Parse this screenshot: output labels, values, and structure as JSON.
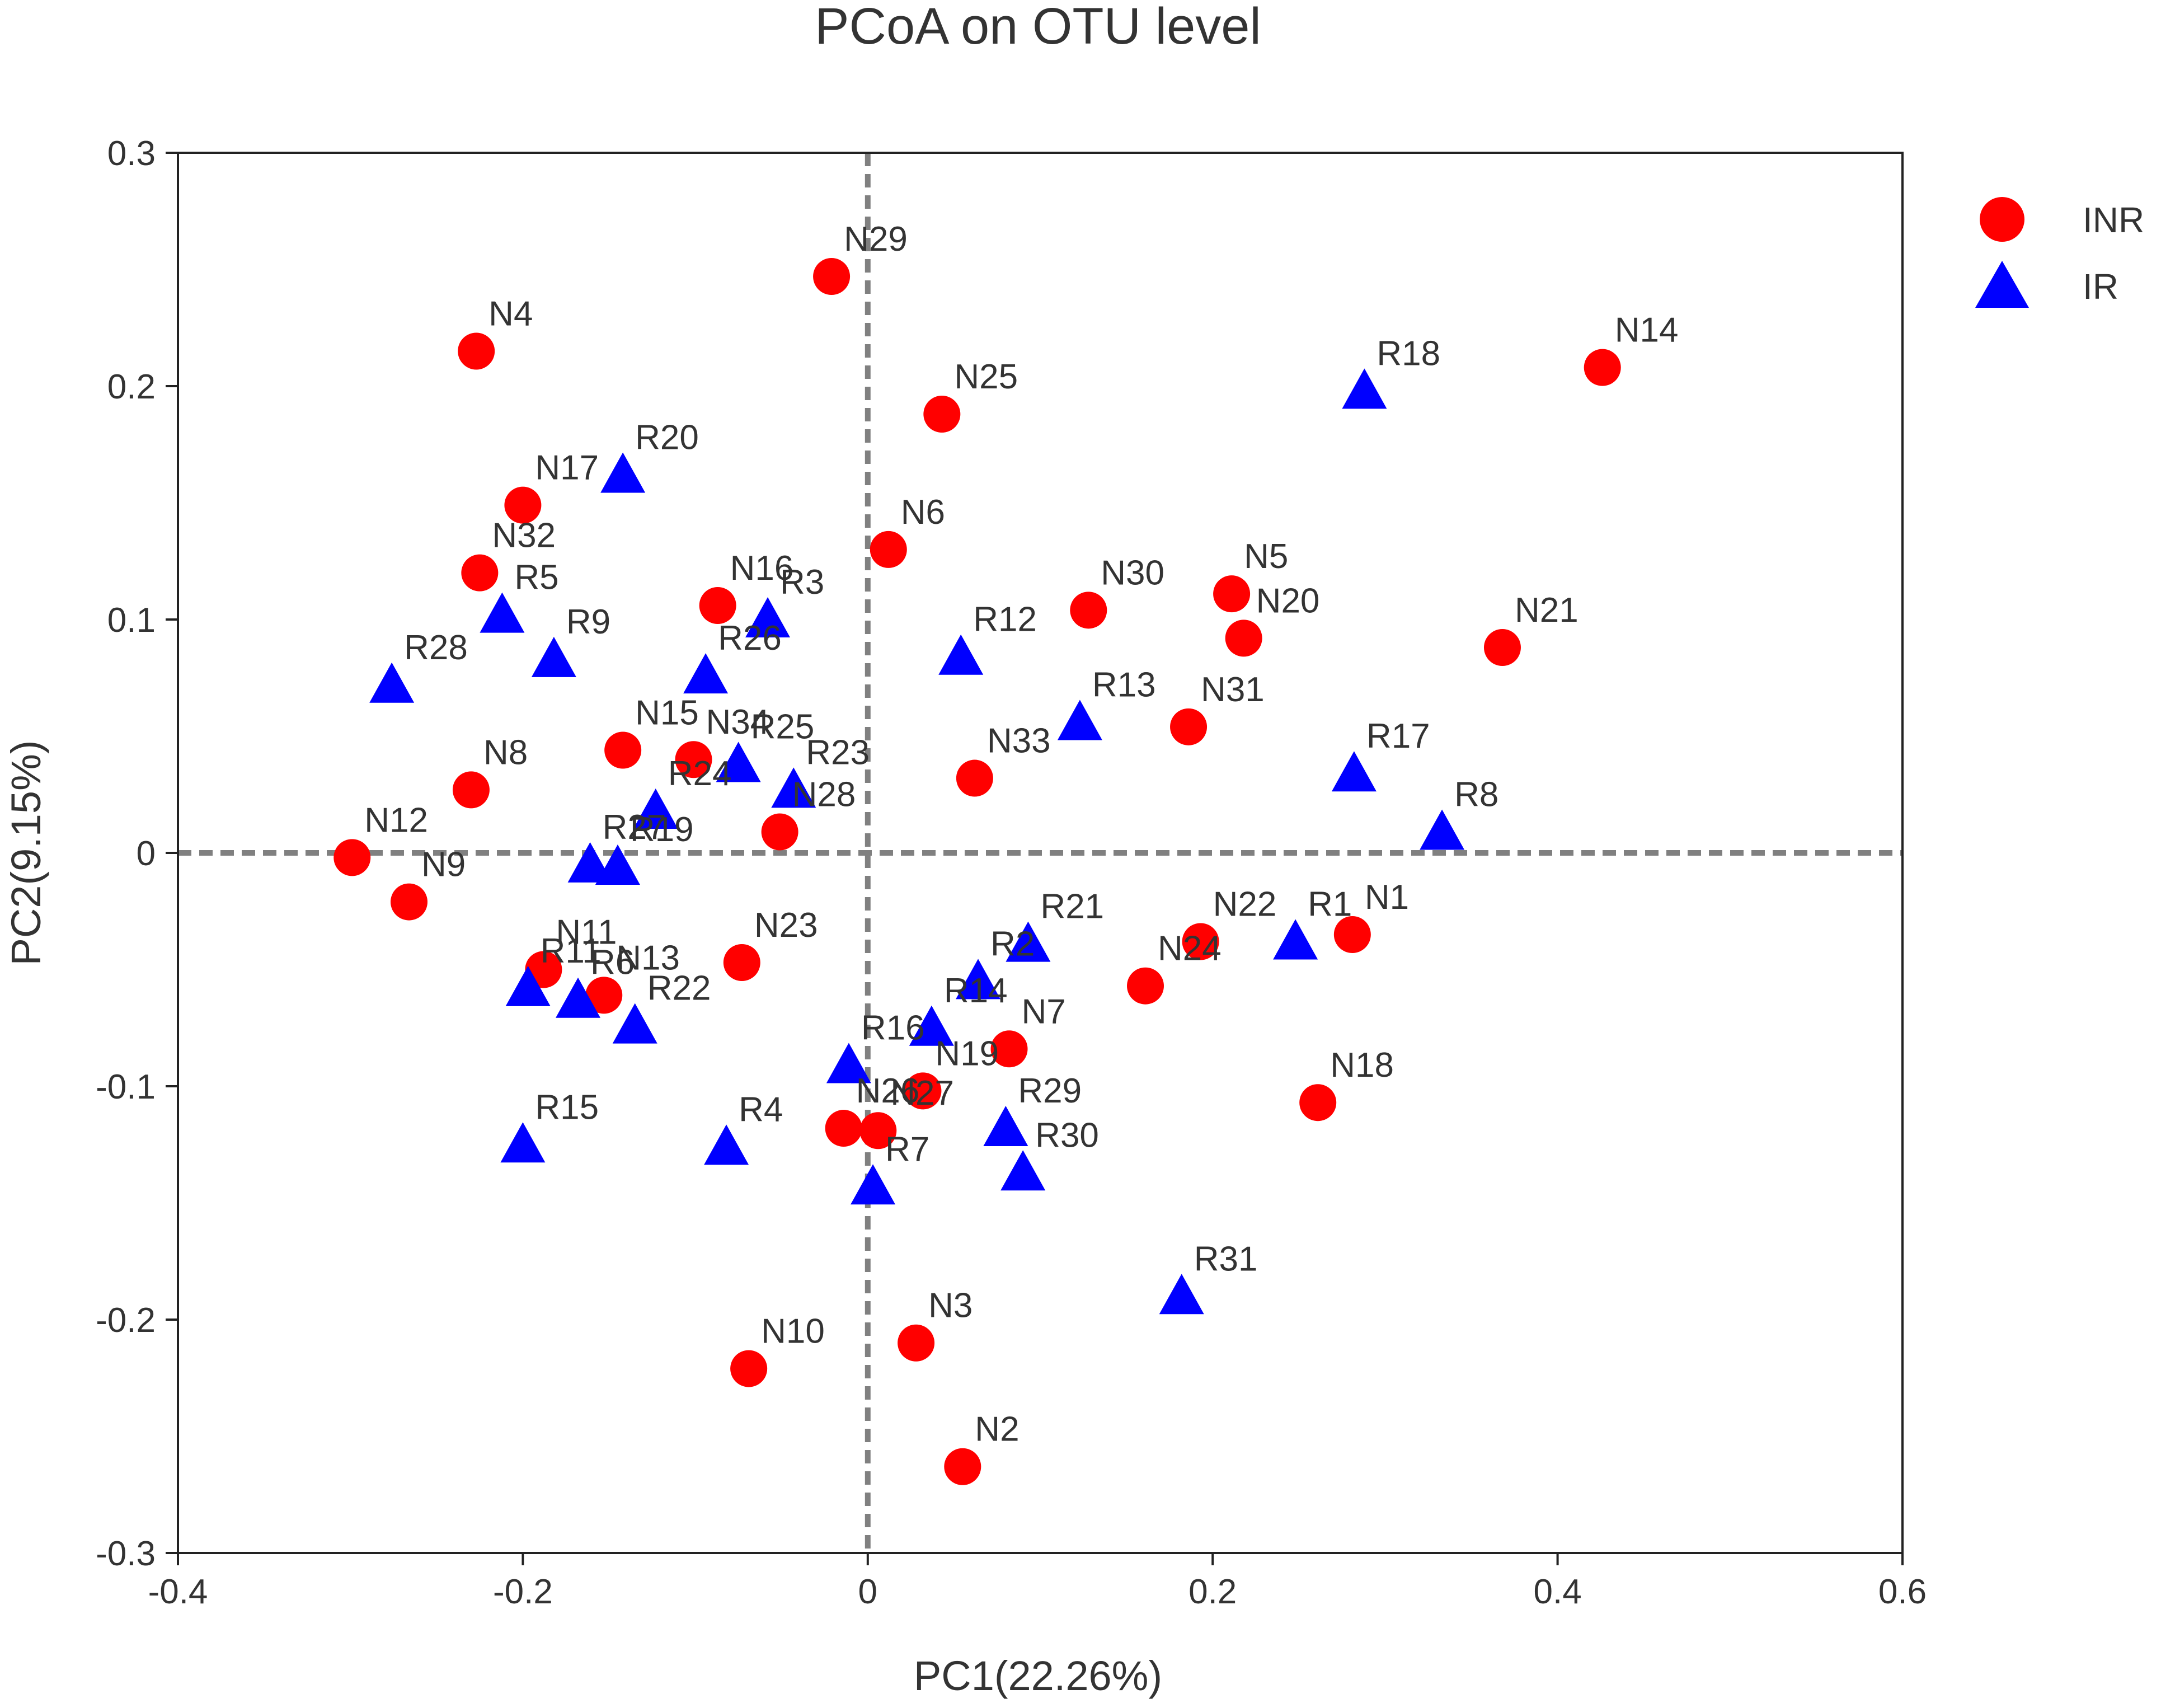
{
  "chart_data": {
    "type": "scatter",
    "title": "PCoA on OTU level",
    "xlabel": "PC1(22.26%)",
    "ylabel": "PC2(9.15%)",
    "xlim": [
      -0.4,
      0.6
    ],
    "ylim": [
      -0.3,
      0.3
    ],
    "xticks": [
      -0.4,
      -0.2,
      0,
      0.2,
      0.4,
      0.6
    ],
    "xtick_labels": [
      "-0.4",
      "-0.2",
      "0",
      "0.2",
      "0.4",
      "0.6"
    ],
    "yticks": [
      -0.3,
      -0.2,
      -0.1,
      0,
      0.1,
      0.2,
      0.3
    ],
    "ytick_labels": [
      "-0.3",
      "-0.2",
      "-0.1",
      "0",
      "0.1",
      "0.2",
      "0.3"
    ],
    "grid": false,
    "reference_lines": {
      "x": 0,
      "y": 0,
      "style": "dashed"
    },
    "legend_position": "right",
    "series": [
      {
        "name": "INR",
        "marker": "circle",
        "color": "#ff0000",
        "points": [
          {
            "label": "N1",
            "x": 0.281,
            "y": -0.035
          },
          {
            "label": "N2",
            "x": 0.055,
            "y": -0.263
          },
          {
            "label": "N3",
            "x": 0.028,
            "y": -0.21
          },
          {
            "label": "N4",
            "x": -0.227,
            "y": 0.215
          },
          {
            "label": "N5",
            "x": 0.211,
            "y": 0.111
          },
          {
            "label": "N6",
            "x": 0.012,
            "y": 0.13
          },
          {
            "label": "N7",
            "x": 0.082,
            "y": -0.084
          },
          {
            "label": "N8",
            "x": -0.23,
            "y": 0.027
          },
          {
            "label": "N9",
            "x": -0.266,
            "y": -0.021
          },
          {
            "label": "N10",
            "x": -0.069,
            "y": -0.221
          },
          {
            "label": "N11",
            "x": -0.188,
            "y": -0.05
          },
          {
            "label": "N12",
            "x": -0.299,
            "y": -0.002
          },
          {
            "label": "N13",
            "x": -0.153,
            "y": -0.061
          },
          {
            "label": "N14",
            "x": 0.426,
            "y": 0.208
          },
          {
            "label": "N15",
            "x": -0.142,
            "y": 0.044
          },
          {
            "label": "N16",
            "x": -0.087,
            "y": 0.106
          },
          {
            "label": "N17",
            "x": -0.2,
            "y": 0.149
          },
          {
            "label": "N18",
            "x": 0.261,
            "y": -0.107
          },
          {
            "label": "N19",
            "x": 0.032,
            "y": -0.102
          },
          {
            "label": "N20",
            "x": 0.218,
            "y": 0.092
          },
          {
            "label": "N21",
            "x": 0.368,
            "y": 0.088
          },
          {
            "label": "N22",
            "x": 0.193,
            "y": -0.038
          },
          {
            "label": "N23",
            "x": -0.073,
            "y": -0.047
          },
          {
            "label": "N24",
            "x": 0.161,
            "y": -0.057
          },
          {
            "label": "N25",
            "x": 0.043,
            "y": 0.188
          },
          {
            "label": "N26",
            "x": -0.014,
            "y": -0.118
          },
          {
            "label": "N27",
            "x": 0.006,
            "y": -0.119
          },
          {
            "label": "N28",
            "x": -0.051,
            "y": 0.009
          },
          {
            "label": "N29",
            "x": -0.021,
            "y": 0.247
          },
          {
            "label": "N30",
            "x": 0.128,
            "y": 0.104
          },
          {
            "label": "N31",
            "x": 0.186,
            "y": 0.054
          },
          {
            "label": "N32",
            "x": -0.225,
            "y": 0.12
          },
          {
            "label": "N33",
            "x": 0.062,
            "y": 0.032
          },
          {
            "label": "N34",
            "x": -0.101,
            "y": 0.04
          }
        ]
      },
      {
        "name": "IR",
        "marker": "triangle",
        "color": "#0000ff",
        "points": [
          {
            "label": "R1",
            "x": 0.248,
            "y": -0.038
          },
          {
            "label": "R2",
            "x": 0.064,
            "y": -0.055
          },
          {
            "label": "R3",
            "x": -0.058,
            "y": 0.1
          },
          {
            "label": "R4",
            "x": -0.082,
            "y": -0.126
          },
          {
            "label": "R5",
            "x": -0.212,
            "y": 0.102
          },
          {
            "label": "R6",
            "x": -0.168,
            "y": -0.063
          },
          {
            "label": "R7",
            "x": 0.003,
            "y": -0.143
          },
          {
            "label": "R8",
            "x": 0.333,
            "y": 0.009
          },
          {
            "label": "R9",
            "x": -0.182,
            "y": 0.083
          },
          {
            "label": "R11",
            "x": -0.197,
            "y": -0.058
          },
          {
            "label": "R12",
            "x": 0.054,
            "y": 0.084
          },
          {
            "label": "R13",
            "x": 0.123,
            "y": 0.056
          },
          {
            "label": "R14",
            "x": 0.037,
            "y": -0.075
          },
          {
            "label": "R15",
            "x": -0.2,
            "y": -0.125
          },
          {
            "label": "R16",
            "x": -0.011,
            "y": -0.091
          },
          {
            "label": "R17",
            "x": 0.282,
            "y": 0.034
          },
          {
            "label": "R18",
            "x": 0.288,
            "y": 0.198
          },
          {
            "label": "R19",
            "x": -0.145,
            "y": -0.006
          },
          {
            "label": "R20",
            "x": -0.142,
            "y": 0.162
          },
          {
            "label": "R21",
            "x": 0.093,
            "y": -0.039
          },
          {
            "label": "R22",
            "x": -0.135,
            "y": -0.074
          },
          {
            "label": "R23",
            "x": -0.043,
            "y": 0.027
          },
          {
            "label": "R24",
            "x": -0.123,
            "y": 0.018
          },
          {
            "label": "R25",
            "x": -0.075,
            "y": 0.038
          },
          {
            "label": "R26",
            "x": -0.094,
            "y": 0.076
          },
          {
            "label": "R27",
            "x": -0.161,
            "y": -0.005
          },
          {
            "label": "R28",
            "x": -0.276,
            "y": 0.072
          },
          {
            "label": "R29",
            "x": 0.08,
            "y": -0.118
          },
          {
            "label": "R30",
            "x": 0.09,
            "y": -0.137
          },
          {
            "label": "R31",
            "x": 0.182,
            "y": -0.19
          }
        ]
      }
    ]
  }
}
